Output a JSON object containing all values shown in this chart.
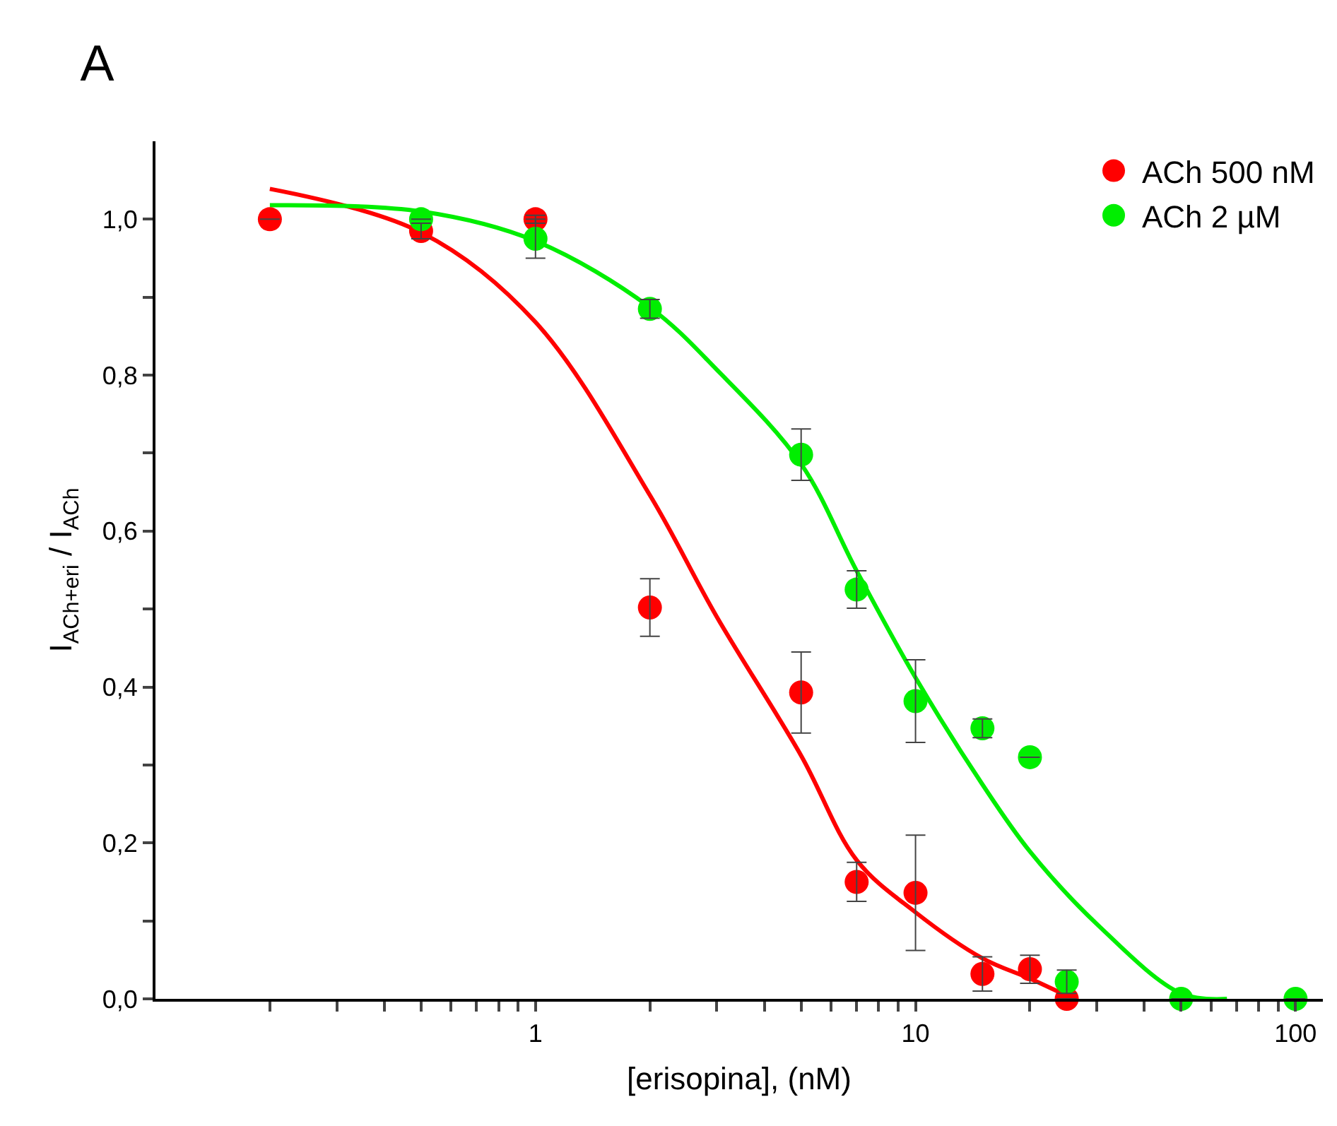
{
  "chart_data": {
    "type": "scatter",
    "title": "A",
    "xlabel": "[erisopina], (nM)",
    "ylabel": "I$_{ACh+eri}$ / I$_{ACh}$",
    "log": "x",
    "xlim": [
      0.1,
      118
    ],
    "ylim": [
      0,
      1.1
    ],
    "xticks": [
      {
        "value": 0.2,
        "label": null
      },
      {
        "value": 0.3,
        "label": null
      },
      {
        "value": 0.4,
        "label": null
      },
      {
        "value": 0.5,
        "label": null
      },
      {
        "value": 0.6,
        "label": null
      },
      {
        "value": 0.7,
        "label": null
      },
      {
        "value": 0.8,
        "label": null
      },
      {
        "value": 0.9,
        "label": null
      },
      1,
      {
        "value": 2,
        "label": null
      },
      {
        "value": 3,
        "label": null
      },
      {
        "value": 4,
        "label": null
      },
      {
        "value": 5,
        "label": null
      },
      {
        "value": 6,
        "label": null
      },
      {
        "value": 7,
        "label": null
      },
      {
        "value": 8,
        "label": null
      },
      {
        "value": 9,
        "label": null
      },
      10,
      {
        "value": 20,
        "label": null
      },
      {
        "value": 30,
        "label": null
      },
      {
        "value": 40,
        "label": null
      },
      {
        "value": 50,
        "label": null
      },
      {
        "value": 60,
        "label": null
      },
      {
        "value": 70,
        "label": null
      },
      {
        "value": 80,
        "label": null
      },
      {
        "value": 90,
        "label": null
      },
      100
    ],
    "yticks": [
      {
        "value": 0,
        "label": "0,0"
      },
      {
        "value": 0.1,
        "label": null
      },
      {
        "value": 0.2,
        "label": "0,2"
      },
      {
        "value": 0.3,
        "label": null
      },
      {
        "value": 0.4,
        "label": "0,4"
      },
      {
        "value": 0.5,
        "label": null
      },
      {
        "value": 0.6,
        "label": "0,6"
      },
      {
        "value": 0.7,
        "label": null
      },
      {
        "value": 0.8,
        "label": "0,8"
      },
      {
        "value": 0.9,
        "label": null
      },
      {
        "value": 1.0,
        "label": "1,0"
      }
    ],
    "legend": "top right",
    "marker": "circle",
    "series": [
      {
        "name": "ACh 500 nM",
        "color": "#ff0000",
        "x": [
          0.2,
          0.5,
          1,
          2,
          5,
          7,
          10,
          15,
          20,
          25
        ],
        "values": [
          1.0,
          0.985,
          1.0,
          0.502,
          0.393,
          0.15,
          0.136,
          0.032,
          0.038,
          0.0
        ],
        "errors": [
          null,
          0.01,
          0.005,
          0.037,
          0.052,
          0.025,
          0.074,
          0.022,
          0.018,
          null
        ]
      },
      {
        "name": "ACh 2 µM",
        "color": "#00ee00",
        "x": [
          0.5,
          1,
          2,
          5,
          7,
          10,
          15,
          20,
          25,
          50,
          100
        ],
        "values": [
          1.0,
          0.975,
          0.885,
          0.698,
          0.525,
          0.382,
          0.347,
          0.31,
          0.022,
          0.0,
          0.0
        ],
        "errors": [
          null,
          0.025,
          0.012,
          0.033,
          0.024,
          0.053,
          0.012,
          null,
          0.015,
          null,
          null
        ]
      },
      {
        "type": "line",
        "color": "#ff0000",
        "marker": "none",
        "x": [
          0.2,
          0.5,
          1,
          2,
          3,
          5,
          7,
          10,
          15,
          20,
          25
        ],
        "values": [
          1.039,
          0.983,
          0.868,
          0.646,
          0.49,
          0.312,
          0.178,
          0.111,
          0.052,
          0.026,
          0.004
        ]
      },
      {
        "type": "line",
        "color": "#00ee00",
        "marker": "none",
        "x": [
          0.2,
          0.5,
          1,
          2,
          3,
          5,
          7,
          10,
          15,
          20,
          30,
          50,
          66
        ],
        "values": [
          1.018,
          1.01,
          0.972,
          0.887,
          0.807,
          0.686,
          0.549,
          0.412,
          0.275,
          0.189,
          0.096,
          0.007,
          0.0
        ]
      }
    ]
  }
}
